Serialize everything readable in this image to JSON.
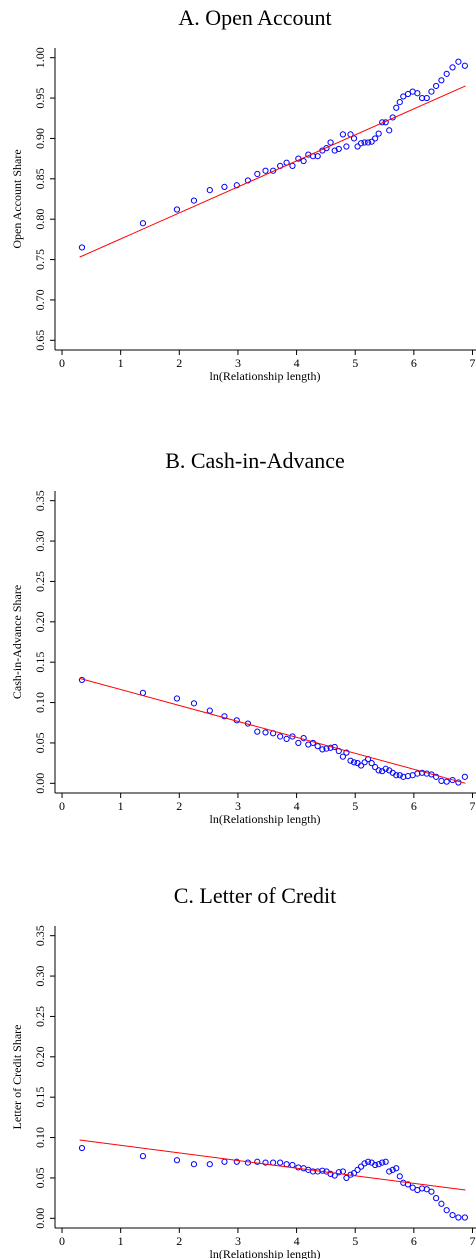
{
  "chart_data": [
    {
      "type": "scatter",
      "title": "A. Open Account",
      "x_label": "ln(Relationship length)",
      "y_label": "Open Account Share",
      "xlim": [
        -0.12,
        7.06
      ],
      "xticks": [
        0,
        1,
        2,
        3,
        4,
        5,
        6,
        7
      ],
      "ylim": [
        0.638,
        1.012
      ],
      "yticks": [
        {
          "value": 0.65,
          "label": "0.65"
        },
        {
          "value": 0.7,
          "label": "0.70"
        },
        {
          "value": 0.75,
          "label": "0.75"
        },
        {
          "value": 0.8,
          "label": "0.80"
        },
        {
          "value": 0.85,
          "label": "0.85"
        },
        {
          "value": 0.9,
          "label": "0.90"
        },
        {
          "value": 0.95,
          "label": "0.95"
        },
        {
          "value": 1.0,
          "label": "1.00"
        }
      ],
      "series": [
        {
          "type": "scatter",
          "color": "#0000ff",
          "x": [
            0.34,
            1.38,
            1.96,
            2.25,
            2.52,
            2.77,
            2.98,
            3.17,
            3.33,
            3.47,
            3.6,
            3.72,
            3.83,
            3.93,
            4.03,
            4.12,
            4.2,
            4.28,
            4.36,
            4.44,
            4.51,
            4.58,
            4.65,
            4.72,
            4.79,
            4.85,
            4.92,
            4.98,
            5.04,
            5.1,
            5.16,
            5.22,
            5.28,
            5.34,
            5.4,
            5.46,
            5.52,
            5.58,
            5.64,
            5.7,
            5.76,
            5.82,
            5.9,
            5.98,
            6.06,
            6.14,
            6.22,
            6.3,
            6.38,
            6.47,
            6.56,
            6.66,
            6.76,
            6.87
          ],
          "values": [
            0.765,
            0.795,
            0.812,
            0.823,
            0.836,
            0.84,
            0.842,
            0.848,
            0.856,
            0.86,
            0.86,
            0.866,
            0.87,
            0.866,
            0.875,
            0.872,
            0.88,
            0.878,
            0.878,
            0.885,
            0.888,
            0.895,
            0.885,
            0.887,
            0.905,
            0.89,
            0.905,
            0.9,
            0.89,
            0.894,
            0.895,
            0.895,
            0.896,
            0.9,
            0.906,
            0.92,
            0.92,
            0.91,
            0.926,
            0.938,
            0.945,
            0.952,
            0.955,
            0.958,
            0.956,
            0.95,
            0.95,
            0.958,
            0.965,
            0.972,
            0.98,
            0.988,
            0.995,
            0.99
          ]
        },
        {
          "type": "line",
          "color": "#ff0000",
          "x": [
            0.3,
            6.88
          ],
          "values": [
            0.753,
            0.965
          ]
        }
      ]
    },
    {
      "type": "scatter",
      "title": "B. Cash-in-Advance",
      "x_label": "ln(Relationship length)",
      "y_label": "Cash-in-Advance Share",
      "xlim": [
        -0.12,
        7.06
      ],
      "xticks": [
        0,
        1,
        2,
        3,
        4,
        5,
        6,
        7
      ],
      "ylim": [
        -0.012,
        0.362
      ],
      "yticks": [
        {
          "value": 0,
          "label": "0.00"
        },
        {
          "value": 0.05,
          "label": "0.05"
        },
        {
          "value": 0.1,
          "label": "0.10"
        },
        {
          "value": 0.15,
          "label": "0.15"
        },
        {
          "value": 0.2,
          "label": "0.20"
        },
        {
          "value": 0.25,
          "label": "0.25"
        },
        {
          "value": 0.3,
          "label": "0.30"
        },
        {
          "value": 0.35,
          "label": "0.35"
        }
      ],
      "series": [
        {
          "type": "scatter",
          "color": "#0000ff",
          "x": [
            0.34,
            1.38,
            1.96,
            2.25,
            2.52,
            2.77,
            2.98,
            3.17,
            3.33,
            3.47,
            3.6,
            3.72,
            3.83,
            3.93,
            4.03,
            4.12,
            4.2,
            4.28,
            4.36,
            4.44,
            4.51,
            4.58,
            4.65,
            4.72,
            4.79,
            4.85,
            4.92,
            4.98,
            5.04,
            5.1,
            5.16,
            5.22,
            5.28,
            5.34,
            5.4,
            5.46,
            5.52,
            5.58,
            5.64,
            5.7,
            5.76,
            5.82,
            5.9,
            5.98,
            6.06,
            6.14,
            6.22,
            6.3,
            6.38,
            6.47,
            6.56,
            6.66,
            6.76,
            6.87
          ],
          "values": [
            0.128,
            0.112,
            0.105,
            0.099,
            0.09,
            0.083,
            0.078,
            0.074,
            0.064,
            0.063,
            0.062,
            0.058,
            0.055,
            0.058,
            0.05,
            0.056,
            0.048,
            0.05,
            0.046,
            0.042,
            0.043,
            0.044,
            0.045,
            0.04,
            0.033,
            0.038,
            0.028,
            0.026,
            0.025,
            0.022,
            0.026,
            0.03,
            0.025,
            0.02,
            0.016,
            0.015,
            0.018,
            0.016,
            0.013,
            0.01,
            0.01,
            0.008,
            0.009,
            0.01,
            0.012,
            0.013,
            0.012,
            0.011,
            0.008,
            0.003,
            0.002,
            0.004,
            0.001,
            0.008
          ]
        },
        {
          "type": "line",
          "color": "#ff0000",
          "x": [
            0.3,
            6.88
          ],
          "values": [
            0.13,
            0.0
          ]
        }
      ]
    },
    {
      "type": "scatter",
      "title": "C. Letter of Credit",
      "x_label": "ln(Relationship length)",
      "y_label": "Letter of Credit Share",
      "xlim": [
        -0.12,
        7.06
      ],
      "xticks": [
        0,
        1,
        2,
        3,
        4,
        5,
        6,
        7
      ],
      "ylim": [
        -0.012,
        0.362
      ],
      "yticks": [
        {
          "value": 0,
          "label": "0.00"
        },
        {
          "value": 0.05,
          "label": "0.05"
        },
        {
          "value": 0.1,
          "label": "0.10"
        },
        {
          "value": 0.15,
          "label": "0.15"
        },
        {
          "value": 0.2,
          "label": "0.20"
        },
        {
          "value": 0.25,
          "label": "0.25"
        },
        {
          "value": 0.3,
          "label": "0.30"
        },
        {
          "value": 0.35,
          "label": "0.35"
        }
      ],
      "series": [
        {
          "type": "scatter",
          "color": "#0000ff",
          "x": [
            0.34,
            1.38,
            1.96,
            2.25,
            2.52,
            2.77,
            2.98,
            3.17,
            3.33,
            3.47,
            3.6,
            3.72,
            3.83,
            3.93,
            4.03,
            4.12,
            4.2,
            4.28,
            4.36,
            4.44,
            4.51,
            4.58,
            4.65,
            4.72,
            4.79,
            4.85,
            4.92,
            4.98,
            5.04,
            5.1,
            5.16,
            5.22,
            5.28,
            5.34,
            5.4,
            5.46,
            5.52,
            5.58,
            5.64,
            5.7,
            5.76,
            5.82,
            5.9,
            5.98,
            6.06,
            6.14,
            6.22,
            6.3,
            6.38,
            6.47,
            6.56,
            6.66,
            6.76,
            6.87
          ],
          "values": [
            0.087,
            0.077,
            0.072,
            0.067,
            0.067,
            0.07,
            0.07,
            0.069,
            0.07,
            0.069,
            0.069,
            0.069,
            0.067,
            0.066,
            0.063,
            0.062,
            0.06,
            0.058,
            0.058,
            0.059,
            0.058,
            0.055,
            0.053,
            0.057,
            0.058,
            0.05,
            0.054,
            0.056,
            0.06,
            0.064,
            0.068,
            0.07,
            0.069,
            0.066,
            0.067,
            0.069,
            0.07,
            0.058,
            0.06,
            0.062,
            0.052,
            0.044,
            0.042,
            0.038,
            0.035,
            0.037,
            0.036,
            0.033,
            0.025,
            0.018,
            0.01,
            0.004,
            0.001,
            0.001
          ]
        },
        {
          "type": "line",
          "color": "#ff0000",
          "x": [
            0.3,
            6.88
          ],
          "values": [
            0.097,
            0.035
          ]
        }
      ]
    }
  ]
}
